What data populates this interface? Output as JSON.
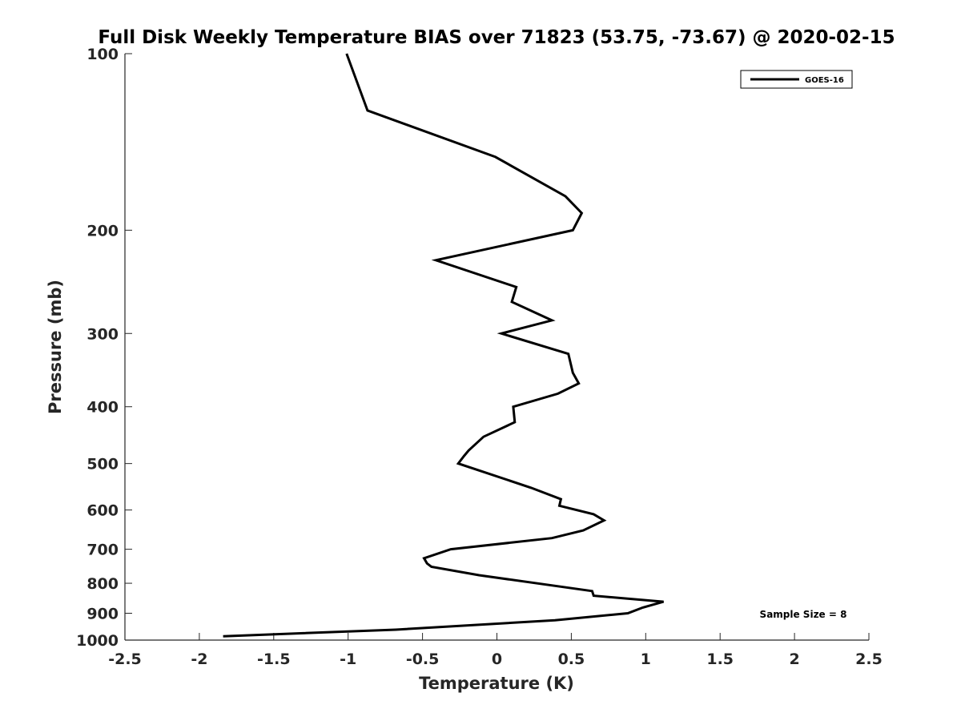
{
  "chart_data": {
    "type": "line",
    "title": "Full Disk Weekly Temperature BIAS over 71823 (53.75, -73.67) @ 2020-02-15",
    "xlabel": "Temperature (K)",
    "ylabel": "Pressure (mb)",
    "xlim": [
      -2.5,
      2.5
    ],
    "ylim": [
      1000,
      100
    ],
    "y_scale": "log",
    "x_ticks": [
      -2.5,
      -2,
      -1.5,
      -1,
      -0.5,
      0,
      0.5,
      1,
      1.5,
      2,
      2.5
    ],
    "x_tick_labels": [
      "-2.5",
      "-2",
      "-1.5",
      "-1",
      "-0.5",
      "0",
      "0.5",
      "1",
      "1.5",
      "2",
      "2.5"
    ],
    "y_ticks": [
      100,
      200,
      300,
      400,
      500,
      600,
      700,
      800,
      900,
      1000
    ],
    "y_tick_labels": [
      "100",
      "200",
      "300",
      "400",
      "500",
      "600",
      "700",
      "800",
      "900",
      "1000"
    ],
    "grid": false,
    "legend_position": "top-right",
    "series": [
      {
        "name": "GOES-16",
        "color": "#000000",
        "points": [
          {
            "x": -1.01,
            "p": 100
          },
          {
            "x": -0.87,
            "p": 125
          },
          {
            "x": -0.01,
            "p": 150
          },
          {
            "x": 0.46,
            "p": 175
          },
          {
            "x": 0.57,
            "p": 187
          },
          {
            "x": 0.51,
            "p": 200
          },
          {
            "x": -0.41,
            "p": 225
          },
          {
            "x": 0.13,
            "p": 250
          },
          {
            "x": 0.1,
            "p": 265
          },
          {
            "x": 0.37,
            "p": 285
          },
          {
            "x": 0.03,
            "p": 300
          },
          {
            "x": 0.48,
            "p": 325
          },
          {
            "x": 0.51,
            "p": 350
          },
          {
            "x": 0.55,
            "p": 365
          },
          {
            "x": 0.41,
            "p": 380
          },
          {
            "x": 0.11,
            "p": 400
          },
          {
            "x": 0.12,
            "p": 425
          },
          {
            "x": -0.09,
            "p": 450
          },
          {
            "x": -0.19,
            "p": 475
          },
          {
            "x": -0.22,
            "p": 485
          },
          {
            "x": -0.26,
            "p": 500
          },
          {
            "x": 0.23,
            "p": 550
          },
          {
            "x": 0.43,
            "p": 575
          },
          {
            "x": 0.42,
            "p": 590
          },
          {
            "x": 0.65,
            "p": 610
          },
          {
            "x": 0.72,
            "p": 625
          },
          {
            "x": 0.58,
            "p": 650
          },
          {
            "x": 0.37,
            "p": 670
          },
          {
            "x": -0.31,
            "p": 700
          },
          {
            "x": -0.49,
            "p": 725
          },
          {
            "x": -0.47,
            "p": 740
          },
          {
            "x": -0.44,
            "p": 750
          },
          {
            "x": -0.12,
            "p": 775
          },
          {
            "x": 0.64,
            "p": 825
          },
          {
            "x": 0.65,
            "p": 840
          },
          {
            "x": 1.12,
            "p": 860
          },
          {
            "x": 0.98,
            "p": 880
          },
          {
            "x": 0.88,
            "p": 900
          },
          {
            "x": 0.39,
            "p": 925
          },
          {
            "x": -0.68,
            "p": 960
          },
          {
            "x": -1.84,
            "p": 985
          }
        ]
      }
    ],
    "annotations": [
      {
        "text": "Sample Size = 8",
        "position": "bottom-right"
      }
    ]
  }
}
